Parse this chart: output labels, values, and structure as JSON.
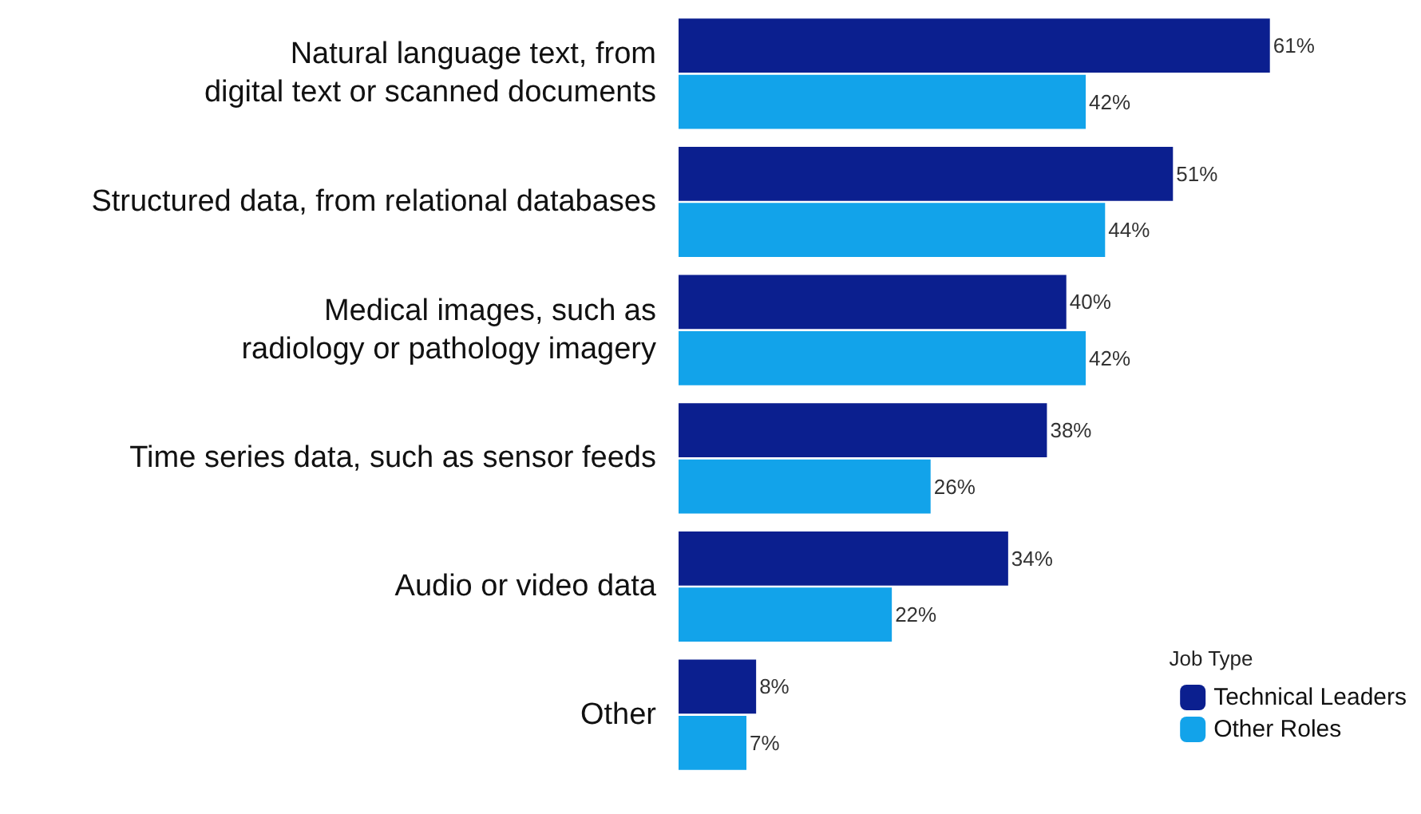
{
  "chart_data": {
    "type": "bar",
    "orientation": "horizontal",
    "categories": [
      "Natural language text, from\ndigital text or scanned documents",
      "Structured data, from relational databases",
      "Medical images, such as\nradiology or pathology imagery",
      "Time series data, such as sensor feeds",
      "Audio or video data",
      "Other"
    ],
    "series": [
      {
        "name": "Technical Leaders",
        "color": "#0b1f8f",
        "values": [
          61,
          51,
          40,
          38,
          34,
          8
        ],
        "value_labels": [
          "61%",
          "51%",
          "40%",
          "38%",
          "34%",
          "8%"
        ]
      },
      {
        "name": "Other Roles",
        "color": "#12a3ea",
        "values": [
          42,
          44,
          42,
          26,
          22,
          7
        ],
        "value_labels": [
          "42%",
          "44%",
          "42%",
          "26%",
          "22%",
          "7%"
        ]
      }
    ],
    "legend": "bottom right",
    "legend_title": "Job Type",
    "grid": false
  }
}
